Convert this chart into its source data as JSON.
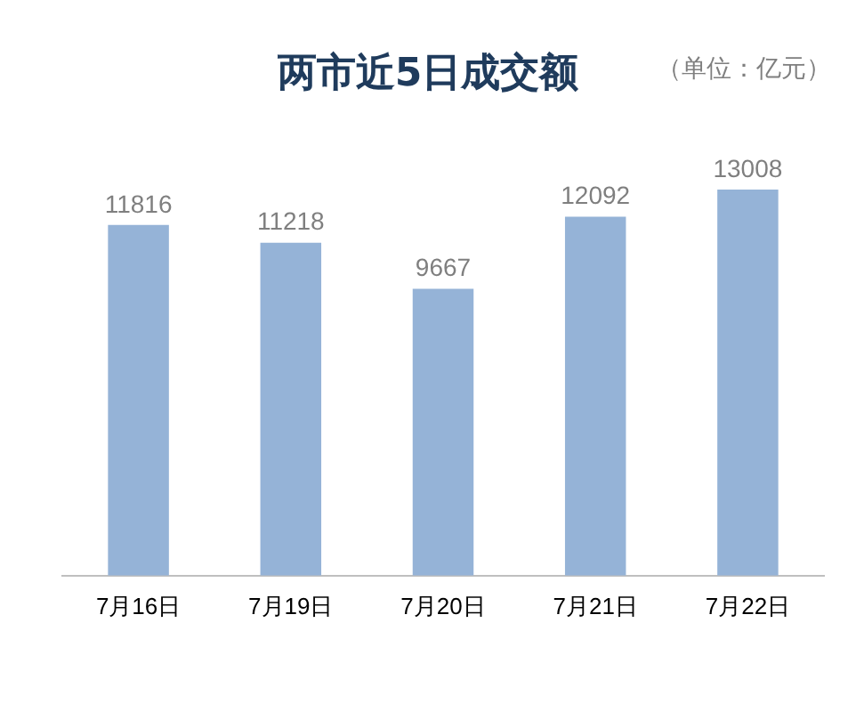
{
  "chart_data": {
    "type": "bar",
    "title": "两市近5日成交额",
    "annotations": [
      "（单位：亿元）"
    ],
    "categories": [
      "7月16日",
      "7月19日",
      "7月20日",
      "7月21日",
      "7月22日"
    ],
    "values": [
      11816,
      11218,
      9667,
      12092,
      13008
    ],
    "color": "#95b3d7",
    "data_labels": true,
    "grid": false,
    "legend": false
  }
}
